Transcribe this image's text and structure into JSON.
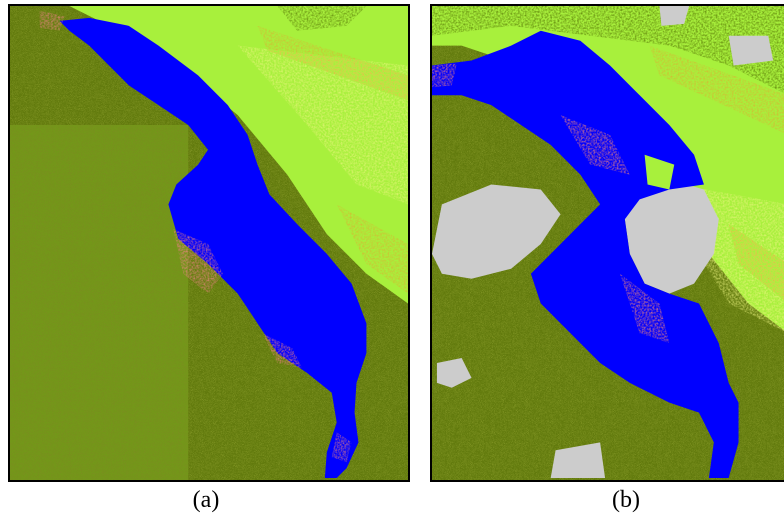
{
  "figure": {
    "panels": [
      {
        "id": "a",
        "caption": "(a)"
      },
      {
        "id": "b",
        "caption": "(b)"
      }
    ]
  },
  "colors": {
    "water": "#0000ff",
    "flooded_vegetation": "#e88080",
    "dense_forest": "#4f6b00",
    "olive_vegetation": "#7a8f1f",
    "bright_vegetation": "#a8f03c",
    "light_crop": "#ecf580",
    "yellow_crop": "#d4b832",
    "cloud": "#cccccc"
  }
}
